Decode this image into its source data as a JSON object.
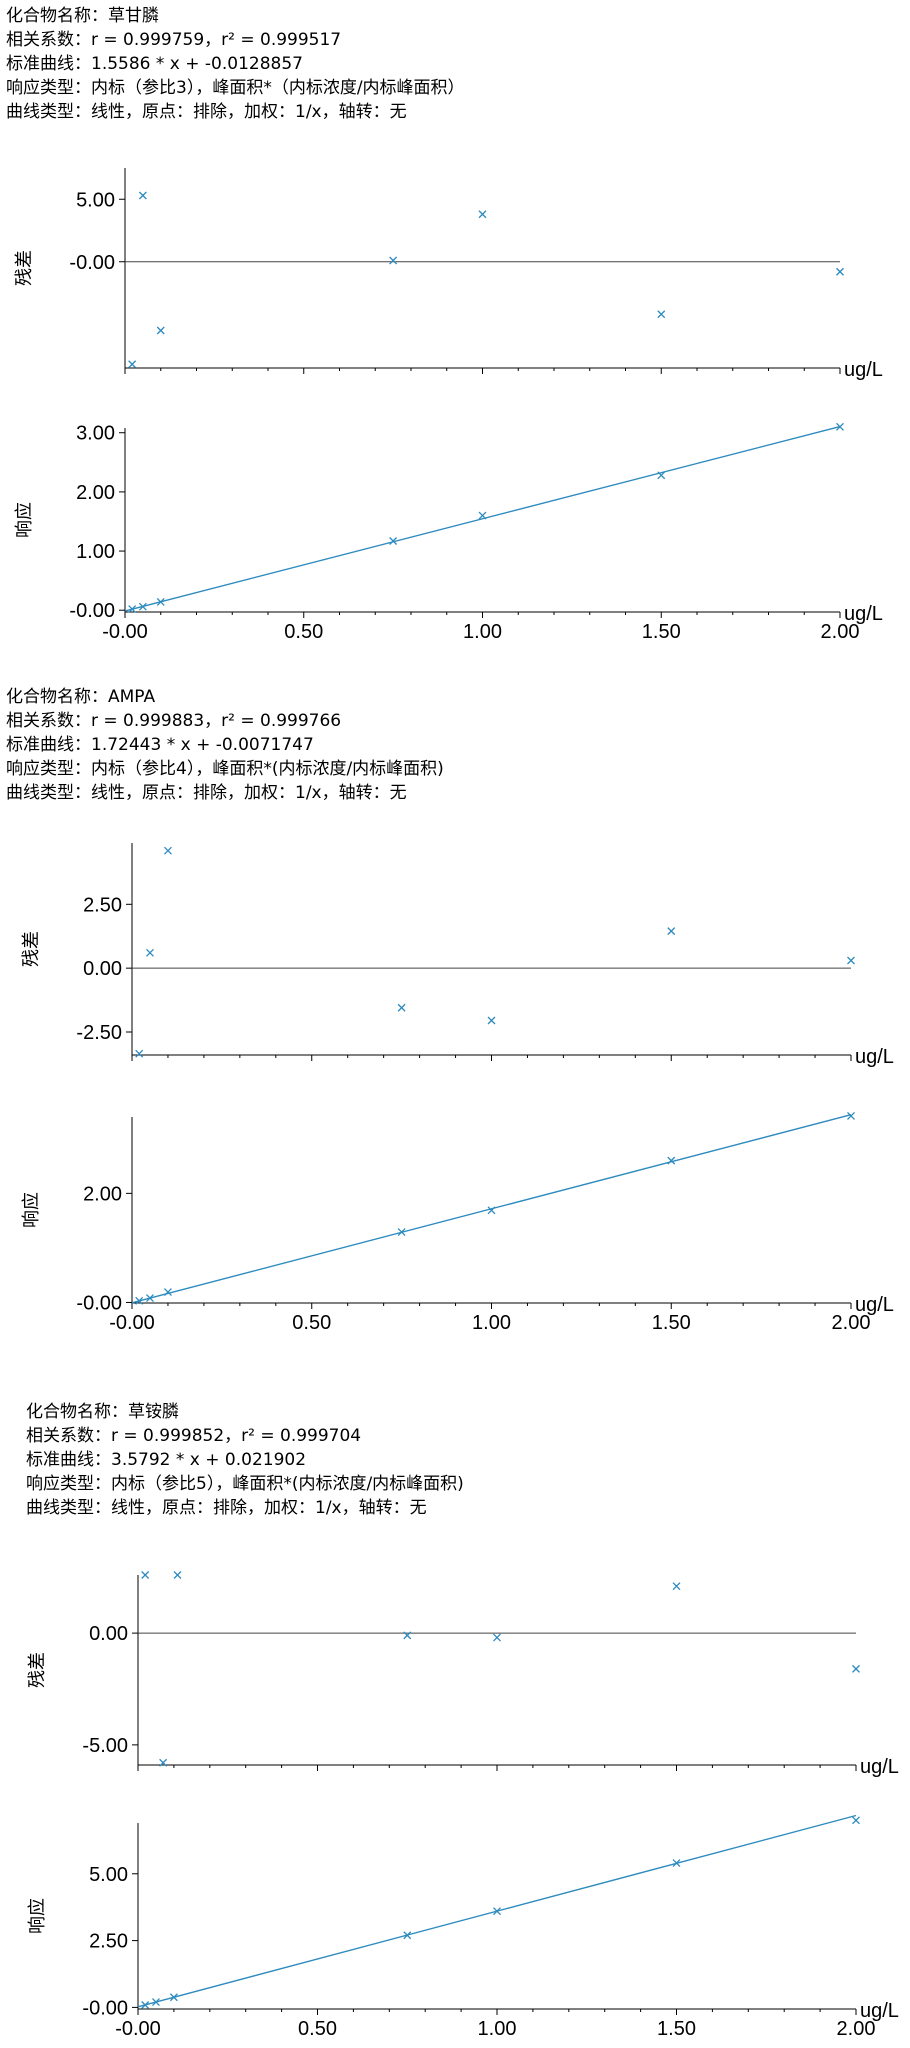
{
  "sections": [
    {
      "compound": "化合物名称：草甘膦",
      "correlation": "相关系数：r = 0.999759，r² = 0.999517",
      "curve": "标准曲线：1.5586 * x + -0.0128857",
      "response": "响应类型：内标（参比3），峰面积*（内标浓度/内标峰面积）",
      "curve_type": "曲线类型：线性，原点：排除，加权：1/x，轴转：无"
    },
    {
      "compound": "化合物名称：AMPA",
      "correlation": "相关系数：r = 0.999883，r² = 0.999766",
      "curve": "标准曲线：1.72443 * x + -0.0071747",
      "response": "响应类型：内标（参比4），峰面积*(内标浓度/内标峰面积)",
      "curve_type": "曲线类型：线性，原点：排除，加权：1/x，轴转：无"
    },
    {
      "compound": "化合物名称：草铵膦",
      "correlation": "相关系数：r = 0.999852，r² = 0.999704",
      "curve": "标准曲线：3.5792 * x + 0.021902",
      "response": "响应类型：内标（参比5），峰面积*(内标浓度/内标峰面积)",
      "curve_type": "曲线类型：线性，原点：排除，加权：1/x，轴转：无"
    }
  ],
  "colors": {
    "series": "#2e8bbf",
    "axis": "#000000",
    "zero_line": "#444444"
  },
  "chart_data": [
    {
      "type": "scatter",
      "ylabel": "残差",
      "xlabel": "ug/L",
      "xlim": [
        0,
        2.0
      ],
      "ylim": [
        -8.5,
        7.5
      ],
      "yticks": [
        5.0,
        0.0
      ],
      "ytick_labels": [
        "5.00",
        "-0.00"
      ],
      "zero_line": true,
      "points": {
        "x": [
          0.02,
          0.05,
          0.1,
          0.75,
          1.0,
          1.5,
          2.0
        ],
        "y": [
          -8.2,
          5.3,
          -5.5,
          0.1,
          3.8,
          -4.2,
          -0.8
        ]
      }
    },
    {
      "type": "line",
      "ylabel": "响应",
      "xlabel": "ug/L",
      "xlim": [
        0,
        2.0
      ],
      "ylim": [
        -0.03,
        3.08
      ],
      "yticks": [
        3.0,
        2.0,
        1.0,
        0.0
      ],
      "ytick_labels": [
        "3.00",
        "2.00",
        "1.00",
        "-0.00"
      ],
      "xticks": [
        0,
        0.5,
        1.0,
        1.5,
        2.0
      ],
      "xtick_labels": [
        "-0.00",
        "0.50",
        "1.00",
        "1.50",
        "2.00"
      ],
      "fit": {
        "slope": 1.5586,
        "intercept": -0.0128857
      },
      "points": {
        "x": [
          0.02,
          0.05,
          0.1,
          0.75,
          1.0,
          1.5,
          2.0
        ],
        "y": [
          0.02,
          0.06,
          0.14,
          1.17,
          1.6,
          2.28,
          3.1
        ]
      }
    },
    {
      "type": "scatter",
      "ylabel": "残差",
      "xlabel": "ug/L",
      "xlim": [
        0,
        2.0
      ],
      "ylim": [
        -3.4,
        4.9
      ],
      "yticks": [
        2.5,
        0.0,
        -2.5
      ],
      "ytick_labels": [
        "2.50",
        "0.00",
        "-2.50"
      ],
      "zero_line": true,
      "points": {
        "x": [
          0.02,
          0.05,
          0.1,
          0.75,
          1.0,
          1.5,
          2.0
        ],
        "y": [
          -3.35,
          0.6,
          4.6,
          -1.55,
          -2.05,
          1.45,
          0.3
        ]
      }
    },
    {
      "type": "line",
      "ylabel": "响应",
      "xlabel": "ug/L",
      "xlim": [
        0,
        2.0
      ],
      "ylim": [
        -0.01,
        3.4
      ],
      "yticks": [
        2.0,
        0.0
      ],
      "ytick_labels": [
        "2.00",
        "-0.00"
      ],
      "xticks": [
        0,
        0.5,
        1.0,
        1.5,
        2.0
      ],
      "xtick_labels": [
        "-0.00",
        "0.50",
        "1.00",
        "1.50",
        "2.00"
      ],
      "fit": {
        "slope": 1.72443,
        "intercept": -0.0071747
      },
      "points": {
        "x": [
          0.02,
          0.05,
          0.1,
          0.75,
          1.0,
          1.5,
          2.0
        ],
        "y": [
          0.03,
          0.08,
          0.19,
          1.29,
          1.69,
          2.6,
          3.42
        ]
      }
    },
    {
      "type": "scatter",
      "ylabel": "残差",
      "xlabel": "ug/L",
      "xlim": [
        0,
        2.0
      ],
      "ylim": [
        -5.9,
        2.6
      ],
      "yticks": [
        0.0,
        -5.0
      ],
      "ytick_labels": [
        "0.00",
        "-5.00"
      ],
      "zero_line": true,
      "points": {
        "x": [
          0.02,
          0.07,
          0.11,
          0.75,
          1.0,
          1.5,
          2.0
        ],
        "y": [
          2.6,
          -5.8,
          2.6,
          -0.1,
          -0.2,
          2.1,
          -1.6
        ]
      }
    },
    {
      "type": "line",
      "ylabel": "响应",
      "xlabel": "ug/L",
      "xlim": [
        0,
        2.0
      ],
      "ylim": [
        -0.06,
        6.9
      ],
      "yticks": [
        5.0,
        2.5,
        0.0
      ],
      "ytick_labels": [
        "5.00",
        "2.50",
        "-0.00"
      ],
      "xticks": [
        0,
        0.5,
        1.0,
        1.5,
        2.0
      ],
      "xtick_labels": [
        "-0.00",
        "0.50",
        "1.00",
        "1.50",
        "2.00"
      ],
      "fit": {
        "slope": 3.5792,
        "intercept": 0.021902
      },
      "points": {
        "x": [
          0.02,
          0.05,
          0.1,
          0.75,
          1.0,
          1.5,
          2.0
        ],
        "y": [
          0.09,
          0.2,
          0.38,
          2.7,
          3.6,
          5.4,
          7.0
        ]
      }
    }
  ]
}
